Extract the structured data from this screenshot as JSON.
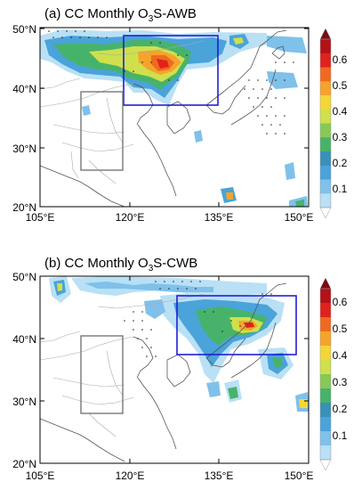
{
  "figure": {
    "panels": [
      {
        "id": "a",
        "title": {
          "prefix": "(a) CC Monthly O",
          "subscript": "3",
          "suffix": "S-AWB"
        },
        "y_ticks": [
          "50°N",
          "40°N",
          "30°N",
          "20°N"
        ],
        "x_ticks": [
          "105°E",
          "120°E",
          "135°E",
          "150°E"
        ],
        "colorbar_labels": [
          "0.6",
          "0.5",
          "0.4",
          "0.3",
          "0.2",
          "0.1"
        ]
      },
      {
        "id": "b",
        "title": {
          "prefix": "(b) CC Monthly O",
          "subscript": "3",
          "suffix": "S-CWB"
        },
        "y_ticks": [
          "50°N",
          "40°N",
          "30°N",
          "20°N"
        ],
        "x_ticks": [
          "105°E",
          "120°E",
          "135°E",
          "150°E"
        ],
        "colorbar_labels": [
          "0.6",
          "0.5",
          "0.4",
          "0.3",
          "0.2",
          "0.1"
        ]
      }
    ],
    "colorscale": [
      "#e2f3fb",
      "#b9e0f5",
      "#7fc1ea",
      "#4aa3d9",
      "#3a90b8",
      "#47b36a",
      "#86c954",
      "#cfe04c",
      "#f4d638",
      "#f6a32b",
      "#ef6a20",
      "#e0221d",
      "#b31217",
      "#7d0a0e"
    ],
    "colors": {
      "coastline": "#555555",
      "borders": "#aaaaaa",
      "box_blue": "#1f1fd6",
      "box_gray": "#777777"
    }
  }
}
